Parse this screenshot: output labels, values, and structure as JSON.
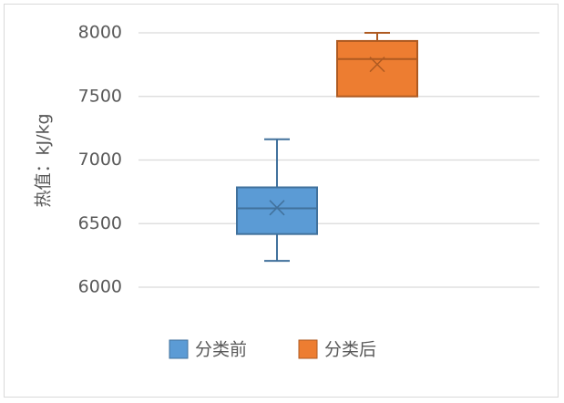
{
  "chart_data": {
    "type": "boxplot",
    "title": "",
    "xlabel": "",
    "ylabel": "热值：kJ/kg",
    "ylim": [
      6000,
      8000
    ],
    "yticks": [
      "8000",
      "7500",
      "7000",
      "6500",
      "6000"
    ],
    "grid": true,
    "legend_position": "bottom",
    "series": [
      {
        "name": "分类前",
        "color": "#5b9bd5",
        "stroke": "#41719c",
        "min": 6207,
        "q1": 6418,
        "median": 6620,
        "mean": 6625,
        "q3": 6785,
        "max": 7163
      },
      {
        "name": "分类后",
        "color": "#ed7d31",
        "stroke": "#ae5a21",
        "min": 7500,
        "q1": 7500,
        "median": 7794,
        "mean": 7752,
        "q3": 7936,
        "max": 8000
      }
    ]
  }
}
